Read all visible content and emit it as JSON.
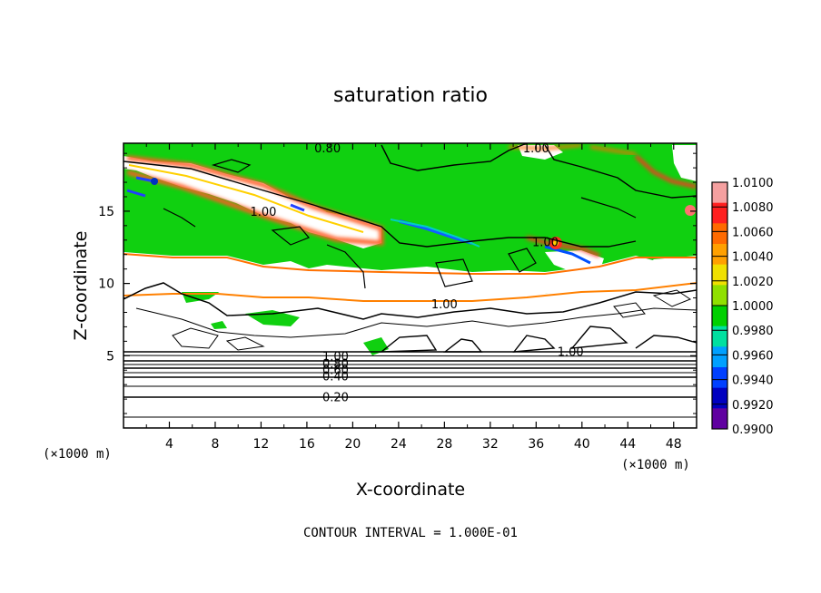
{
  "chart_data": {
    "type": "heatmap",
    "title": "saturation ratio",
    "xlabel": "X-coordinate",
    "ylabel": "Z-coordinate",
    "x_unit_label": "(×1000 m)",
    "xlim": [
      0,
      50
    ],
    "ylim": [
      0,
      19.7
    ],
    "x_ticks": [
      4,
      8,
      12,
      16,
      20,
      24,
      28,
      32,
      36,
      40,
      44,
      48
    ],
    "y_ticks": [
      5,
      10,
      15
    ],
    "footer": "CONTOUR INTERVAL = 1.000E-01",
    "colorbar": {
      "levels": [
        "1.0100",
        "1.0080",
        "1.0060",
        "1.0040",
        "1.0020",
        "1.0000",
        "0.9980",
        "0.9960",
        "0.9940",
        "0.9920",
        "0.9900"
      ],
      "colors": [
        "#f5a0a0",
        "#ff2020",
        "#ff6a00",
        "#ffa000",
        "#f0e000",
        "#90e000",
        "#00d000",
        "#00e0a0",
        "#00a0ff",
        "#0040ff",
        "#0000c0",
        "#6000a0"
      ]
    },
    "contour_labels": [
      {
        "text": "0.20",
        "x": 18.5,
        "y": 2.15
      },
      {
        "text": "0.40",
        "x": 18.5,
        "y": 3.6
      },
      {
        "text": "0.60",
        "x": 18.5,
        "y": 4.05
      },
      {
        "text": "0.80",
        "x": 18.5,
        "y": 4.5
      },
      {
        "text": "1.00",
        "x": 18.5,
        "y": 5.0
      },
      {
        "text": "1.00",
        "x": 39.0,
        "y": 5.3
      },
      {
        "text": "1.00",
        "x": 28.0,
        "y": 8.6
      },
      {
        "text": "1.00",
        "x": 36.8,
        "y": 12.9
      },
      {
        "text": "1.00",
        "x": 12.2,
        "y": 15.0
      },
      {
        "text": "0.80",
        "x": 17.8,
        "y": 19.4
      },
      {
        "text": "1.00",
        "x": 36.0,
        "y": 19.4
      }
    ]
  }
}
